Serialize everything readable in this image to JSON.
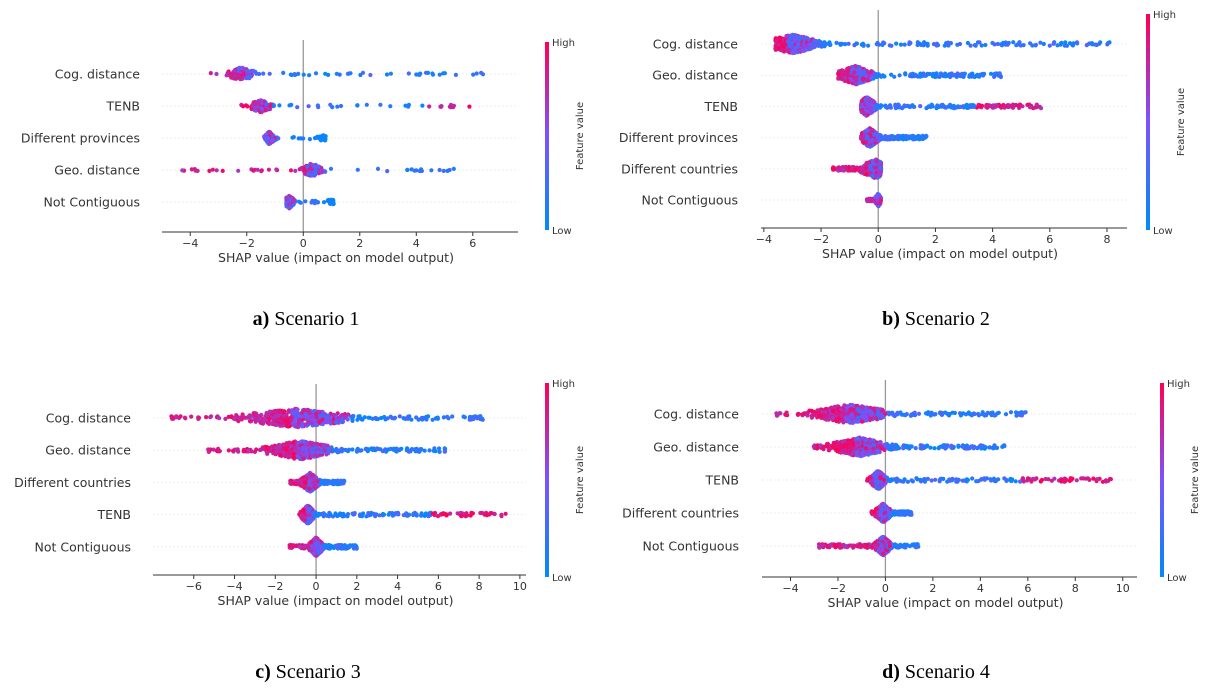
{
  "chart_data": [
    {
      "type": "scatter",
      "subtype": "shap-beeswarm",
      "panel_id": "a",
      "caption_letter": "a)",
      "caption_text": " Scenario 1",
      "xlabel": "SHAP value (impact on model output)",
      "xlim": [
        -5,
        7.6
      ],
      "xticks": [
        -4,
        -2,
        0,
        2,
        4,
        6
      ],
      "colorbar": {
        "label": "Feature value",
        "high": "High",
        "low": "Low"
      },
      "features": [
        {
          "name": "Cog. distance",
          "min": -3.6,
          "max": 7.1,
          "center": -2.2,
          "core_width": 0.5,
          "spread": 1.3,
          "dense": false
        },
        {
          "name": "TENB",
          "min": -2.2,
          "max": 7.3,
          "center": -1.5,
          "core_width": 0.4,
          "spread": 1.1,
          "dense": false
        },
        {
          "name": "Different provinces",
          "min": -1.4,
          "max": 0.8,
          "center": -1.2,
          "core_width": 0.2,
          "spread": 0.0,
          "dense": false,
          "secondary": 0.7
        },
        {
          "name": "Geo. distance",
          "min": -4.3,
          "max": 5.4,
          "center": 0.3,
          "core_width": 0.4,
          "spread": 1.6,
          "dense": false
        },
        {
          "name": "Not Contiguous",
          "min": -0.6,
          "max": 1.1,
          "center": -0.5,
          "core_width": 0.2,
          "spread": 0.0,
          "dense": false,
          "secondary": 1.0
        }
      ]
    },
    {
      "type": "scatter",
      "subtype": "shap-beeswarm",
      "panel_id": "b",
      "caption_letter": "b)",
      "caption_text": " Scenario 2",
      "xlabel": "SHAP value (impact on model output)",
      "xlim": [
        -4.1,
        8.7
      ],
      "xticks": [
        -4,
        -2,
        0,
        2,
        4,
        6,
        8
      ],
      "colorbar": {
        "label": "Feature value",
        "high": "High",
        "low": "Low"
      },
      "features": [
        {
          "name": "Cog. distance",
          "min": -3.6,
          "max": 8.2,
          "center": -3.0,
          "core_width": 0.9,
          "spread": 2.6,
          "dense": true
        },
        {
          "name": "Geo. distance",
          "min": -1.4,
          "max": 4.3,
          "center": -0.8,
          "core_width": 0.6,
          "spread": 1.5,
          "dense": true
        },
        {
          "name": "TENB",
          "min": -0.6,
          "max": 5.7,
          "center": -0.4,
          "core_width": 0.3,
          "spread": 2.1,
          "dense": true
        },
        {
          "name": "Different provinces",
          "min": -0.6,
          "max": 1.7,
          "center": -0.3,
          "core_width": 0.3,
          "spread": 0.8,
          "dense": true
        },
        {
          "name": "Different countries",
          "min": -1.6,
          "max": 0.1,
          "center": -0.1,
          "core_width": 0.5,
          "spread": 0.4,
          "dense": true
        },
        {
          "name": "Not Contiguous",
          "min": -0.4,
          "max": 0.1,
          "center": 0.0,
          "core_width": 0.1,
          "spread": 0.0,
          "dense": false
        }
      ]
    },
    {
      "type": "scatter",
      "subtype": "shap-beeswarm",
      "panel_id": "c",
      "caption_letter": "c)",
      "caption_text": " Scenario 3",
      "xlabel": "SHAP value (impact on model output)",
      "xlim": [
        -8.0,
        10.3
      ],
      "xticks": [
        -6,
        -4,
        -2,
        0,
        2,
        4,
        6,
        8,
        10
      ],
      "colorbar": {
        "label": "Feature value",
        "high": "High",
        "low": "Low"
      },
      "features": [
        {
          "name": "Cog. distance",
          "min": -7.1,
          "max": 8.2,
          "center": -1.0,
          "core_width": 2.6,
          "spread": 3.4,
          "dense": true
        },
        {
          "name": "Geo. distance",
          "min": -5.3,
          "max": 6.6,
          "center": -0.8,
          "core_width": 1.6,
          "spread": 2.6,
          "dense": true
        },
        {
          "name": "Different countries",
          "min": -1.3,
          "max": 1.4,
          "center": -0.3,
          "core_width": 0.4,
          "spread": 0.8,
          "dense": true
        },
        {
          "name": "TENB",
          "min": -0.9,
          "max": 9.4,
          "center": -0.4,
          "core_width": 0.3,
          "spread": 3.4,
          "dense": true
        },
        {
          "name": "Not Contiguous",
          "min": -1.3,
          "max": 2.0,
          "center": 0.0,
          "core_width": 0.3,
          "spread": 0.8,
          "dense": true
        }
      ]
    },
    {
      "type": "scatter",
      "subtype": "shap-beeswarm",
      "panel_id": "d",
      "caption_letter": "d)",
      "caption_text": " Scenario 4",
      "xlabel": "SHAP value (impact on model output)",
      "xlim": [
        -5.2,
        10.6
      ],
      "xticks": [
        -4,
        -2,
        0,
        2,
        4,
        6,
        8,
        10
      ],
      "colorbar": {
        "label": "Feature value",
        "high": "High",
        "low": "Low"
      },
      "features": [
        {
          "name": "Cog. distance",
          "min": -4.6,
          "max": 6.0,
          "center": -1.5,
          "core_width": 1.6,
          "spread": 2.4,
          "dense": true
        },
        {
          "name": "Geo. distance",
          "min": -3.1,
          "max": 5.1,
          "center": -1.1,
          "core_width": 1.2,
          "spread": 2.0,
          "dense": true
        },
        {
          "name": "TENB",
          "min": -0.8,
          "max": 9.6,
          "center": -0.3,
          "core_width": 0.3,
          "spread": 3.6,
          "dense": true
        },
        {
          "name": "Different countries",
          "min": -0.6,
          "max": 1.1,
          "center": -0.1,
          "core_width": 0.3,
          "spread": 0.5,
          "dense": true
        },
        {
          "name": "Not Contiguous",
          "min": -2.8,
          "max": 1.4,
          "center": -0.1,
          "core_width": 0.3,
          "spread": 0.9,
          "dense": true
        }
      ]
    }
  ]
}
